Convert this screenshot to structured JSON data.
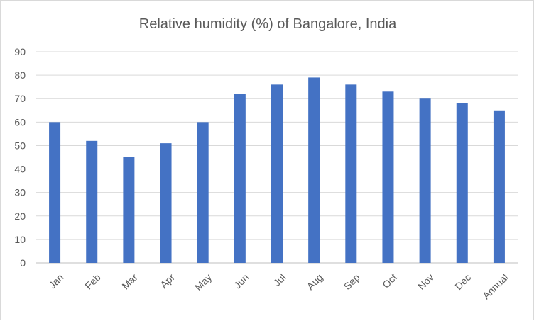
{
  "chart_data": {
    "type": "bar",
    "title": "Relative humidity (%) of Bangalore, India",
    "categories": [
      "Jan",
      "Feb",
      "Mar",
      "Apr",
      "May",
      "Jun",
      "Jul",
      "Aug",
      "Sep",
      "Oct",
      "Nov",
      "Dec",
      "Annual"
    ],
    "values": [
      60,
      52,
      45,
      51,
      60,
      72,
      76,
      79,
      76,
      73,
      70,
      68,
      65
    ],
    "ylim": [
      0,
      90
    ],
    "yticks": [
      0,
      10,
      20,
      30,
      40,
      50,
      60,
      70,
      80,
      90
    ],
    "xlabel": "",
    "ylabel": "",
    "grid": true,
    "legend": "none",
    "bar_color": "#4472C4"
  }
}
